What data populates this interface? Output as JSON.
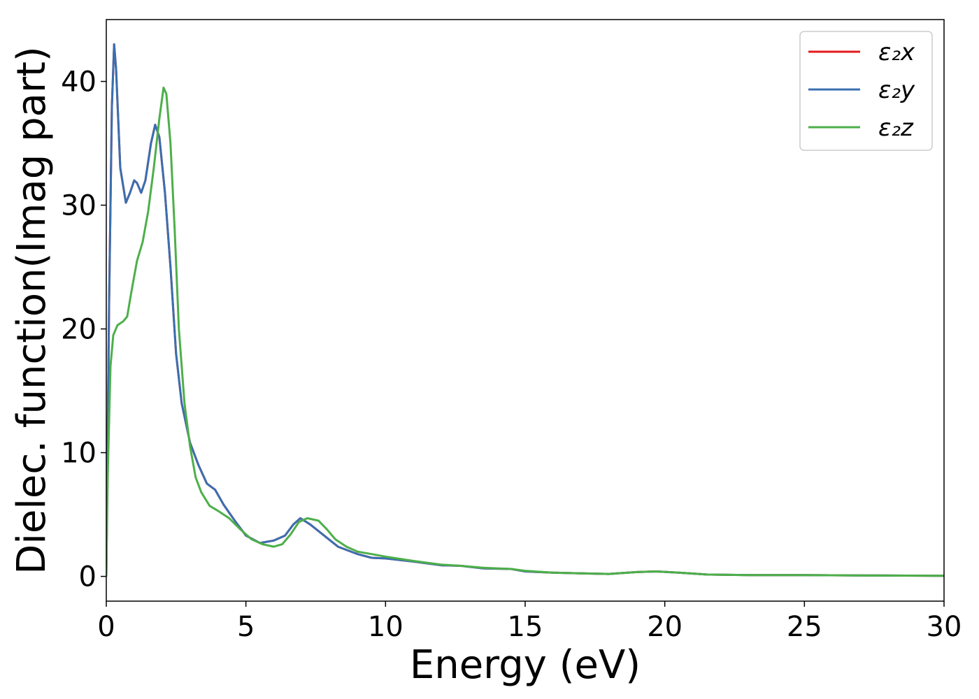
{
  "chart_data": {
    "type": "line",
    "xlabel": "Energy (eV)",
    "ylabel": "Dielec. function(Imag part)",
    "xlim": [
      0,
      30
    ],
    "ylim": [
      -2,
      45
    ],
    "x_ticks": [
      0,
      5,
      10,
      15,
      20,
      25,
      30
    ],
    "y_ticks": [
      0,
      10,
      20,
      30,
      40
    ],
    "grid": false,
    "legend_position": "top-right",
    "series": [
      {
        "name": "ε₂x",
        "color": "#e41a1c",
        "points": [
          [
            0,
            0
          ],
          [
            0.1,
            22
          ],
          [
            0.2,
            38
          ],
          [
            0.28,
            43
          ],
          [
            0.35,
            41
          ],
          [
            0.5,
            33
          ],
          [
            0.7,
            30.2
          ],
          [
            0.85,
            31
          ],
          [
            1.0,
            32
          ],
          [
            1.1,
            31.8
          ],
          [
            1.25,
            31
          ],
          [
            1.4,
            32
          ],
          [
            1.6,
            35
          ],
          [
            1.75,
            36.5
          ],
          [
            1.9,
            35.5
          ],
          [
            2.1,
            31
          ],
          [
            2.3,
            25
          ],
          [
            2.5,
            18
          ],
          [
            2.7,
            14
          ],
          [
            3.0,
            10.8
          ],
          [
            3.3,
            9
          ],
          [
            3.6,
            7.5
          ],
          [
            3.9,
            7
          ],
          [
            4.2,
            5.8
          ],
          [
            4.6,
            4.5
          ],
          [
            5.0,
            3.3
          ],
          [
            5.5,
            2.7
          ],
          [
            6.0,
            2.9
          ],
          [
            6.4,
            3.3
          ],
          [
            6.7,
            4.2
          ],
          [
            6.95,
            4.7
          ],
          [
            7.3,
            4.2
          ],
          [
            7.8,
            3.3
          ],
          [
            8.3,
            2.4
          ],
          [
            9.0,
            1.8
          ],
          [
            9.5,
            1.5
          ],
          [
            10,
            1.45
          ],
          [
            11,
            1.2
          ],
          [
            12,
            0.9
          ],
          [
            12.7,
            0.85
          ],
          [
            13.5,
            0.65
          ],
          [
            14.5,
            0.6
          ],
          [
            15,
            0.4
          ],
          [
            16,
            0.3
          ],
          [
            17,
            0.25
          ],
          [
            18,
            0.2
          ],
          [
            19,
            0.35
          ],
          [
            19.7,
            0.4
          ],
          [
            20.5,
            0.3
          ],
          [
            21.5,
            0.15
          ],
          [
            23,
            0.1
          ],
          [
            25,
            0.1
          ],
          [
            27,
            0.08
          ],
          [
            30,
            0.05
          ]
        ]
      },
      {
        "name": "ε₂y",
        "color": "#3a6fb0",
        "points": [
          [
            0,
            0
          ],
          [
            0.1,
            22
          ],
          [
            0.2,
            38
          ],
          [
            0.28,
            43
          ],
          [
            0.35,
            41
          ],
          [
            0.5,
            33
          ],
          [
            0.7,
            30.2
          ],
          [
            0.85,
            31
          ],
          [
            1.0,
            32
          ],
          [
            1.1,
            31.8
          ],
          [
            1.25,
            31
          ],
          [
            1.4,
            32
          ],
          [
            1.6,
            35
          ],
          [
            1.75,
            36.5
          ],
          [
            1.9,
            35.5
          ],
          [
            2.1,
            31
          ],
          [
            2.3,
            25
          ],
          [
            2.5,
            18
          ],
          [
            2.7,
            14
          ],
          [
            3.0,
            10.8
          ],
          [
            3.3,
            9
          ],
          [
            3.6,
            7.5
          ],
          [
            3.9,
            7
          ],
          [
            4.2,
            5.8
          ],
          [
            4.6,
            4.5
          ],
          [
            5.0,
            3.3
          ],
          [
            5.5,
            2.7
          ],
          [
            6.0,
            2.9
          ],
          [
            6.4,
            3.3
          ],
          [
            6.7,
            4.2
          ],
          [
            6.95,
            4.7
          ],
          [
            7.3,
            4.2
          ],
          [
            7.8,
            3.3
          ],
          [
            8.3,
            2.4
          ],
          [
            9.0,
            1.8
          ],
          [
            9.5,
            1.5
          ],
          [
            10,
            1.45
          ],
          [
            11,
            1.2
          ],
          [
            12,
            0.9
          ],
          [
            12.7,
            0.85
          ],
          [
            13.5,
            0.65
          ],
          [
            14.5,
            0.6
          ],
          [
            15,
            0.4
          ],
          [
            16,
            0.3
          ],
          [
            17,
            0.25
          ],
          [
            18,
            0.2
          ],
          [
            19,
            0.35
          ],
          [
            19.7,
            0.4
          ],
          [
            20.5,
            0.3
          ],
          [
            21.5,
            0.15
          ],
          [
            23,
            0.1
          ],
          [
            25,
            0.1
          ],
          [
            27,
            0.08
          ],
          [
            30,
            0.05
          ]
        ]
      },
      {
        "name": "ε₂z",
        "color": "#4daf4a",
        "points": [
          [
            0,
            0
          ],
          [
            0.05,
            8
          ],
          [
            0.15,
            17
          ],
          [
            0.25,
            19.5
          ],
          [
            0.4,
            20.3
          ],
          [
            0.6,
            20.6
          ],
          [
            0.75,
            21
          ],
          [
            0.9,
            23
          ],
          [
            1.1,
            25.5
          ],
          [
            1.3,
            27
          ],
          [
            1.5,
            29.5
          ],
          [
            1.7,
            33
          ],
          [
            1.9,
            37
          ],
          [
            2.05,
            39.5
          ],
          [
            2.15,
            39
          ],
          [
            2.3,
            35
          ],
          [
            2.45,
            28
          ],
          [
            2.6,
            20
          ],
          [
            2.8,
            14
          ],
          [
            3.0,
            10.5
          ],
          [
            3.2,
            8
          ],
          [
            3.4,
            6.8
          ],
          [
            3.7,
            5.7
          ],
          [
            4.0,
            5.3
          ],
          [
            4.4,
            4.7
          ],
          [
            4.8,
            3.8
          ],
          [
            5.2,
            3
          ],
          [
            5.6,
            2.6
          ],
          [
            6.0,
            2.4
          ],
          [
            6.3,
            2.6
          ],
          [
            6.6,
            3.4
          ],
          [
            6.9,
            4.4
          ],
          [
            7.2,
            4.7
          ],
          [
            7.6,
            4.5
          ],
          [
            7.9,
            3.8
          ],
          [
            8.2,
            3
          ],
          [
            8.6,
            2.4
          ],
          [
            9.0,
            2
          ],
          [
            9.5,
            1.8
          ],
          [
            10,
            1.6
          ],
          [
            11,
            1.25
          ],
          [
            12,
            0.95
          ],
          [
            12.7,
            0.85
          ],
          [
            13.5,
            0.7
          ],
          [
            14.5,
            0.6
          ],
          [
            15,
            0.45
          ],
          [
            16,
            0.3
          ],
          [
            17,
            0.25
          ],
          [
            18,
            0.2
          ],
          [
            19,
            0.35
          ],
          [
            19.7,
            0.4
          ],
          [
            20.5,
            0.3
          ],
          [
            21.5,
            0.15
          ],
          [
            23,
            0.1
          ],
          [
            25,
            0.1
          ],
          [
            27,
            0.08
          ],
          [
            30,
            0.05
          ]
        ]
      }
    ]
  }
}
